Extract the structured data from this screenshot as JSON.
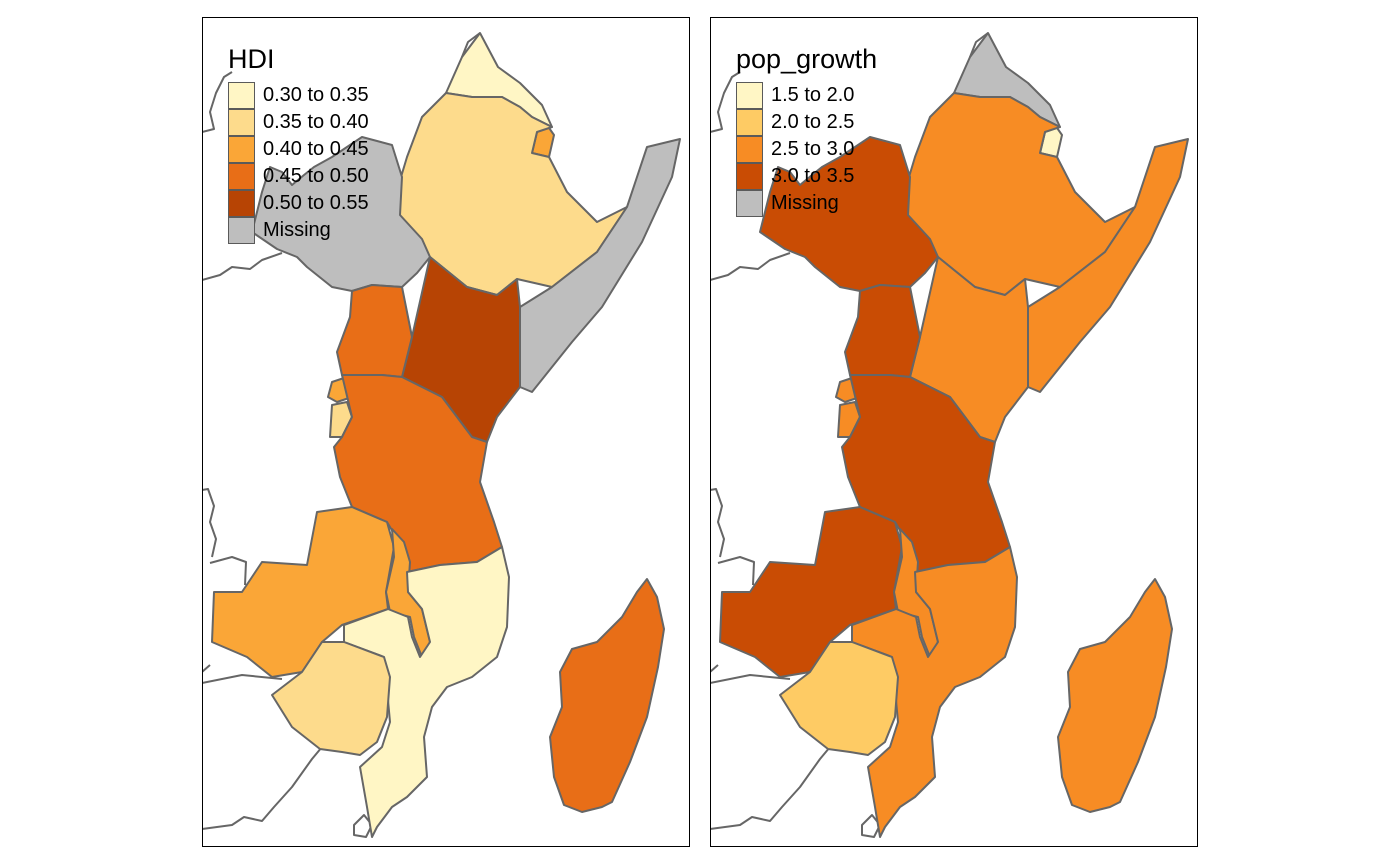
{
  "map_data": {
    "type": "choropleth",
    "panels": [
      {
        "key": "hdi",
        "legend": {
          "title": "HDI",
          "items": [
            {
              "label": "0.30 to 0.35",
              "color": "#fff6c5"
            },
            {
              "label": "0.35 to 0.40",
              "color": "#fddb8c"
            },
            {
              "label": "0.40 to 0.45",
              "color": "#faa637"
            },
            {
              "label": "0.45 to 0.50",
              "color": "#e86e17"
            },
            {
              "label": "0.50 to 0.55",
              "color": "#b74404"
            },
            {
              "label": "Missing",
              "color": "#bebebe"
            }
          ]
        },
        "regions": {
          "eritrea": "#fff6c5",
          "djibouti": "#faa637",
          "ethiopia": "#fddb8c",
          "somalia": "#bebebe",
          "south-sudan": "#bebebe",
          "kenya": "#b74404",
          "uganda": "#e86e17",
          "rwanda": "#faa637",
          "burundi": "#fddb8c",
          "tanzania": "#e86e17",
          "zambia": "#faa637",
          "malawi": "#faa637",
          "mozambique": "#fff6c5",
          "zimbabwe": "#fddb8c",
          "madagascar": "#e86e17"
        }
      },
      {
        "key": "pop_growth",
        "legend": {
          "title": "pop_growth",
          "items": [
            {
              "label": "1.5 to 2.0",
              "color": "#fff6c5"
            },
            {
              "label": "2.0 to 2.5",
              "color": "#fecb64"
            },
            {
              "label": "2.5 to 3.0",
              "color": "#f78c24"
            },
            {
              "label": "3.0 to 3.5",
              "color": "#c94c04"
            },
            {
              "label": "Missing",
              "color": "#bebebe"
            }
          ]
        },
        "regions": {
          "eritrea": "#bebebe",
          "djibouti": "#fff6c5",
          "ethiopia": "#f78c24",
          "somalia": "#f78c24",
          "south-sudan": "#c94c04",
          "kenya": "#f78c24",
          "uganda": "#c94c04",
          "rwanda": "#f78c24",
          "burundi": "#f78c24",
          "tanzania": "#c94c04",
          "zambia": "#c94c04",
          "malawi": "#f78c24",
          "mozambique": "#f78c24",
          "zimbabwe": "#fecb64",
          "madagascar": "#f78c24"
        }
      }
    ]
  }
}
